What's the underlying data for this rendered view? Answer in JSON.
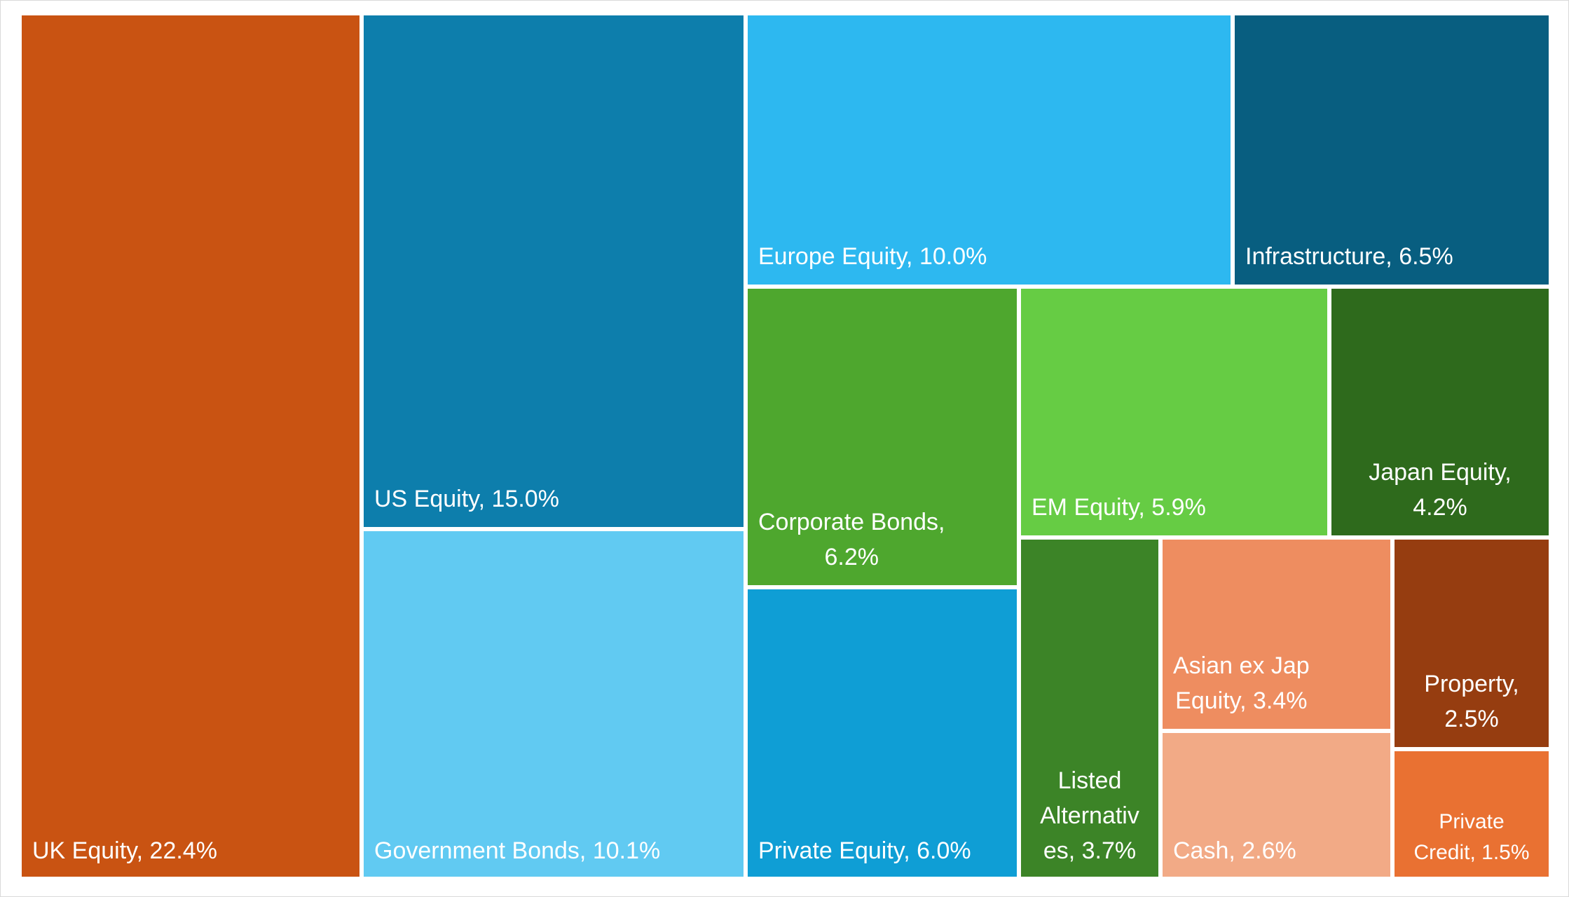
{
  "chart_data": {
    "type": "treemap",
    "title": "",
    "items": [
      {
        "name": "UK Equity",
        "value": 22.4,
        "label": "UK Equity, 22.4%",
        "color": "#C95312"
      },
      {
        "name": "US Equity",
        "value": 15.0,
        "label": "US Equity, 15.0%",
        "color": "#0D7EAC"
      },
      {
        "name": "Government Bonds",
        "value": 10.1,
        "label": "Government Bonds, 10.1%",
        "color": "#61CAF2"
      },
      {
        "name": "Europe Equity",
        "value": 10.0,
        "label": "Europe Equity, 10.0%",
        "color": "#2DB8F0"
      },
      {
        "name": "Infrastructure",
        "value": 6.5,
        "label": "Infrastructure, 6.5%",
        "color": "#085E80"
      },
      {
        "name": "Corporate Bonds",
        "value": 6.2,
        "label": "Corporate Bonds, 6.2%",
        "color": "#4EA72E"
      },
      {
        "name": "Private Equity",
        "value": 6.0,
        "label": "Private Equity, 6.0%",
        "color": "#0F9ED5"
      },
      {
        "name": "EM Equity",
        "value": 5.9,
        "label": "EM Equity, 5.9%",
        "color": "#66CC44"
      },
      {
        "name": "Japan Equity",
        "value": 4.2,
        "label": "Japan Equity, 4.2%",
        "color": "#2E6A1C"
      },
      {
        "name": "Listed Alternatives",
        "value": 3.7,
        "label": "Listed Alternatives, 3.7%",
        "color": "#3C8427"
      },
      {
        "name": "Asian ex Jap Equity",
        "value": 3.4,
        "label": "Asian ex Jap Equity, 3.4%",
        "color": "#EE8D60"
      },
      {
        "name": "Cash",
        "value": 2.6,
        "label": "Cash, 2.6%",
        "color": "#F2AA86"
      },
      {
        "name": "Property",
        "value": 2.5,
        "label": "Property, 2.5%",
        "color": "#963D10"
      },
      {
        "name": "Private Credit",
        "value": 1.5,
        "label": "Private Credit, 1.5%",
        "color": "#E97132"
      }
    ]
  }
}
